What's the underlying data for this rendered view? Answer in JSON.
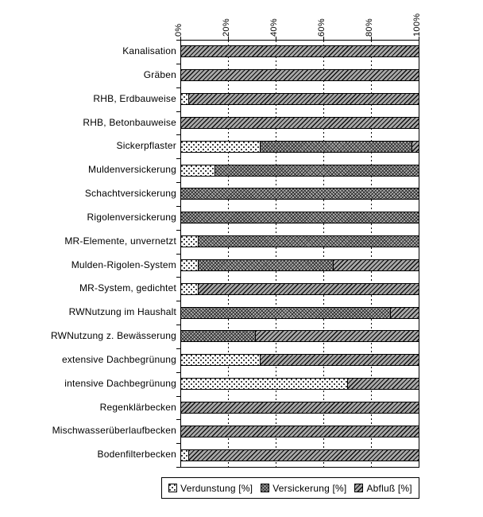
{
  "chart_data": {
    "type": "bar",
    "orientation": "horizontal",
    "stacked": true,
    "title": "",
    "xlabel": "",
    "ylabel": "",
    "xlim": [
      0,
      100
    ],
    "x_ticks": [
      "0%",
      "20%",
      "40%",
      "60%",
      "80%",
      "100%"
    ],
    "grid": "vertical-dashed-at-20-40-60-80",
    "legend_position": "bottom",
    "categories": [
      "Kanalisation",
      "Gräben",
      "RHB, Erdbauweise",
      "RHB, Betonbauweise",
      "Sickerpflaster",
      "Muldenversickerung",
      "Schachtversickerung",
      "Rigolenversickerung",
      "MR-Elemente, unvernetzt",
      "Mulden-Rigolen-System",
      "MR-System, gedichtet",
      "RWNutzung im Haushalt",
      "RWNutzung z. Bewässerung",
      "extensive Dachbegrünung",
      "intensive Dachbegrünung",
      "Regenklärbecken",
      "Mischwasserüberlaufbecken",
      "Bodenfilterbecken"
    ],
    "series": [
      {
        "name": "Verdunstung [%]",
        "pattern": "verdunstung",
        "values": [
          0,
          0,
          3,
          0,
          33,
          14,
          0,
          0,
          7,
          7,
          7,
          0,
          0,
          33,
          70,
          0,
          0,
          3
        ]
      },
      {
        "name": "Versickerung [%]",
        "pattern": "versickerung",
        "values": [
          0,
          0,
          0,
          0,
          64,
          86,
          100,
          100,
          93,
          57,
          0,
          88,
          31,
          0,
          0,
          0,
          0,
          0
        ]
      },
      {
        "name": "Abfluß [%]",
        "pattern": "abfluss",
        "values": [
          100,
          100,
          97,
          100,
          3,
          0,
          0,
          0,
          0,
          36,
          93,
          12,
          69,
          67,
          30,
          100,
          100,
          97
        ]
      }
    ]
  },
  "colors": {
    "background": "#ffffff",
    "axis_and_borders": "#000000",
    "abfluss_gray": "#a9a9a9",
    "versickerung_gray": "#b5b5b5",
    "verdunstung_white": "#ffffff"
  }
}
